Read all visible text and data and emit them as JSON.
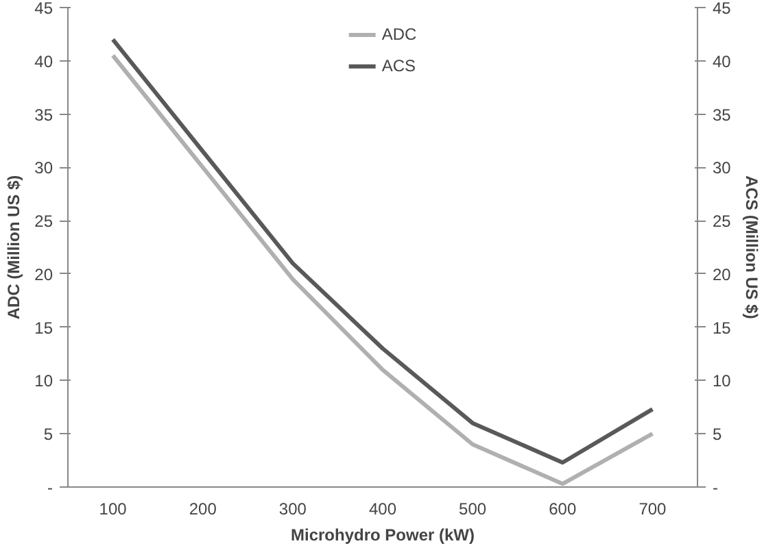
{
  "chart_data": {
    "type": "line",
    "xlabel": "Microhydro Power (kW)",
    "ylabel": "ADC (Million US $)",
    "y2label": "ACS (Million US $)",
    "categories": [
      "100",
      "200",
      "300",
      "400",
      "500",
      "600",
      "700"
    ],
    "series": [
      {
        "name": "ADC",
        "color": "#b0b0b0",
        "values": [
          40.5,
          30,
          19.5,
          11,
          4,
          0.3,
          5
        ]
      },
      {
        "name": "ACS",
        "color": "#595959",
        "values": [
          42,
          31.5,
          21,
          13,
          6,
          2.3,
          7.3
        ]
      }
    ],
    "ylim": [
      0,
      45
    ],
    "yticks": [
      {
        "value": 0,
        "label": "-"
      },
      5,
      10,
      15,
      20,
      25,
      30,
      35,
      40,
      45
    ],
    "y2lim": [
      0,
      45
    ],
    "y2ticks": [
      {
        "value": 0,
        "label": "-"
      },
      5,
      10,
      15,
      20,
      25,
      30,
      35,
      40,
      45
    ],
    "grid": false,
    "legend": "top",
    "marker": "none",
    "line_style": "solid"
  }
}
